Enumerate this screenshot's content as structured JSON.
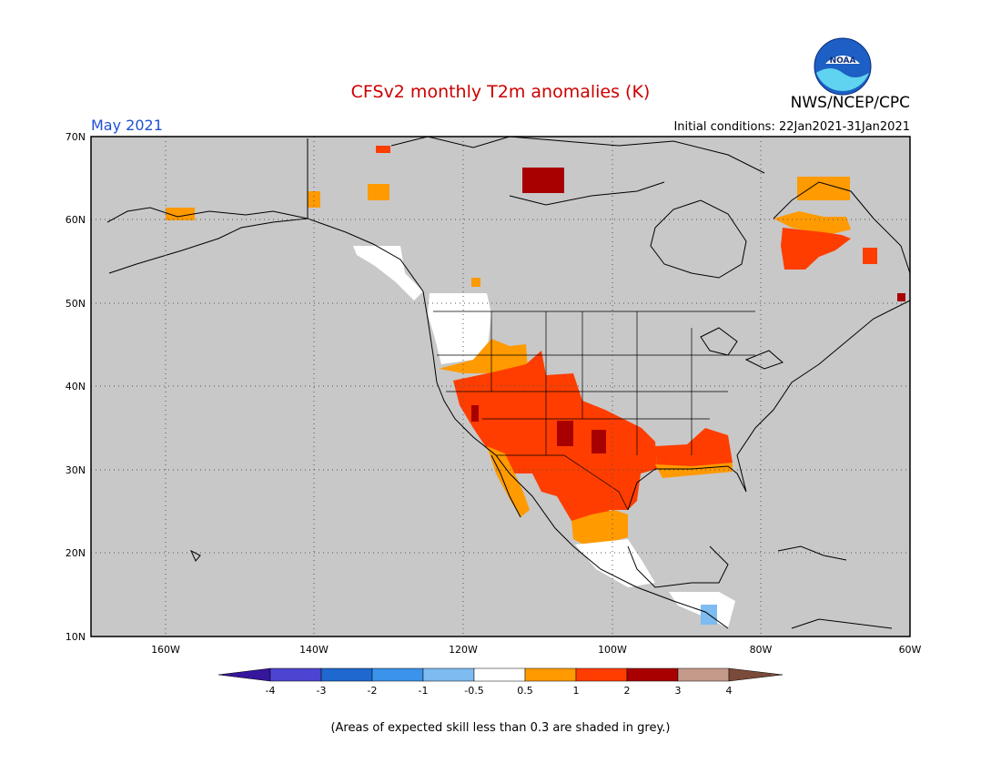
{
  "header": {
    "title": "CFSv2 monthly T2m anomalies (K)",
    "agency": "NWS/NCEP/CPC",
    "valid_month": "May 2021",
    "initial_conditions": "Initial conditions: 22Jan2021-31Jan2021",
    "logo_text": "NOAA"
  },
  "colors": {
    "title": "#cc0000",
    "month": "#1f4fd6",
    "background_grey": "#c8c8c8",
    "legend": [
      "#35169c",
      "#4d44d1",
      "#1f68cf",
      "#3b93ea",
      "#7dbbf0",
      "#ffffff",
      "#ff9a00",
      "#ff3d00",
      "#a80000",
      "#c49a8a",
      "#7a4a3a"
    ]
  },
  "map": {
    "lat_labels": [
      "70N",
      "60N",
      "50N",
      "40N",
      "30N",
      "20N",
      "10N"
    ],
    "lon_labels": [
      "160W",
      "140W",
      "120W",
      "100W",
      "80W",
      "60W"
    ],
    "lat_range": [
      10,
      70
    ],
    "lon_range": [
      -170,
      -60
    ],
    "grid": "dotted",
    "anomaly_regions": [
      {
        "name": "southwest-us",
        "class": "1 to 2",
        "color": "#ff3d00"
      },
      {
        "name": "southwest-core",
        "class": "2 to 3",
        "color": "#a80000"
      },
      {
        "name": "margins",
        "class": "0.5 to 1",
        "color": "#ff9a00"
      },
      {
        "name": "northwest-us",
        "class": "-0.5 to 0.5",
        "color": "#ffffff"
      },
      {
        "name": "quebec",
        "class": "1 to 2",
        "color": "#ff3d00"
      },
      {
        "name": "mexico-south",
        "class": "-0.5 to 0.5",
        "color": "#ffffff"
      }
    ]
  },
  "legend": {
    "tick_labels": [
      "-4",
      "-3",
      "-2",
      "-1",
      "-0.5",
      "0.5",
      "1",
      "2",
      "3",
      "4"
    ]
  },
  "footer": {
    "skill_note": "(Areas of expected skill less than 0.3 are shaded in grey.)"
  }
}
